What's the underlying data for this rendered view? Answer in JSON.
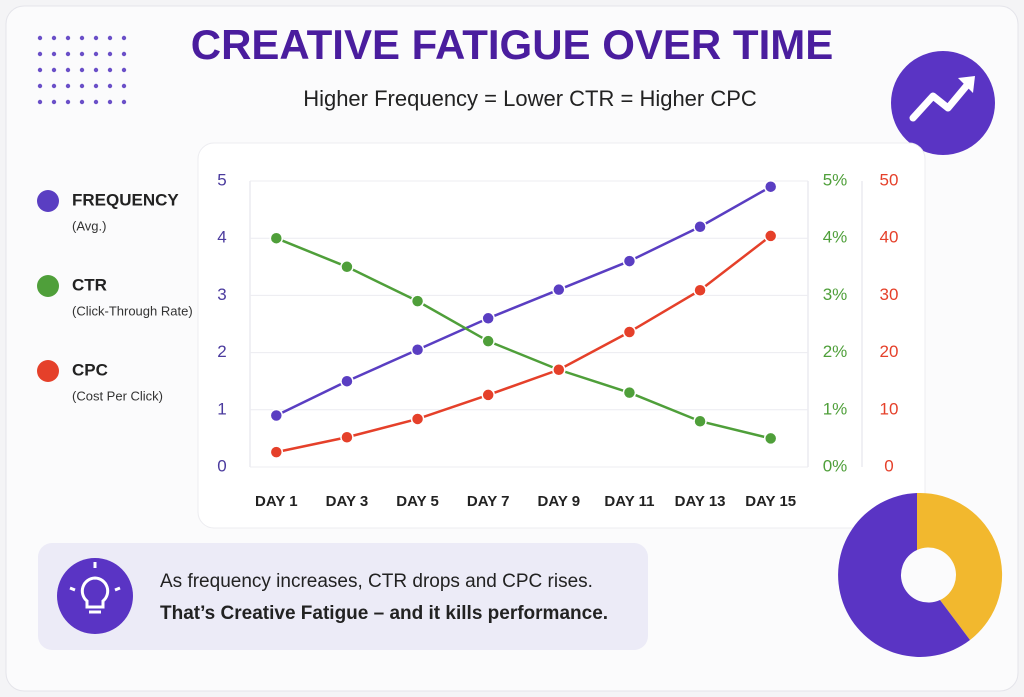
{
  "header": {
    "title": "CREATIVE FATIGUE OVER TIME",
    "subtitle": "Higher Frequency = Lower CTR = Higher CPC"
  },
  "chart_data": {
    "type": "line",
    "categories": [
      "DAY 1",
      "DAY 3",
      "DAY 5",
      "DAY 7",
      "DAY 9",
      "DAY 11",
      "DAY 13",
      "DAY 15"
    ],
    "series": [
      {
        "name": "FREQUENCY",
        "description": "(Avg.)",
        "color": "#5a3ec2",
        "axis": "y",
        "values": [
          0.9,
          1.5,
          2.05,
          2.6,
          3.1,
          3.6,
          4.2,
          4.9
        ]
      },
      {
        "name": "CTR",
        "description": "(Click-Through Rate)",
        "color": "#4f9f3a",
        "axis": "y2",
        "values": [
          4.0,
          3.5,
          2.9,
          2.2,
          1.7,
          1.3,
          0.8,
          0.5
        ]
      },
      {
        "name": "CPC",
        "description": "(Cost Per Click)",
        "color": "#e5402a",
        "axis": "y3",
        "values": [
          2.6,
          5.2,
          8.4,
          12.6,
          17.0,
          23.6,
          30.9,
          40.4
        ]
      }
    ],
    "ylim": [
      0,
      5
    ],
    "yticks": [
      0,
      1,
      2,
      3,
      4,
      5
    ],
    "y2lim": [
      0,
      5
    ],
    "y2ticks": [
      {
        "value": 0,
        "label": "0%"
      },
      {
        "value": 1,
        "label": "1%"
      },
      {
        "value": 2,
        "label": "2%"
      },
      {
        "value": 3,
        "label": "3%"
      },
      {
        "value": 4,
        "label": "4%"
      },
      {
        "value": 5,
        "label": "5%"
      }
    ],
    "y3lim": [
      0,
      50
    ],
    "y3ticks": [
      0,
      10,
      20,
      30,
      40,
      50
    ],
    "grid": true
  },
  "callout": {
    "line1": "As frequency increases, CTR drops and CPC rises.",
    "line2": "That’s Creative Fatigue – and it kills performance."
  }
}
